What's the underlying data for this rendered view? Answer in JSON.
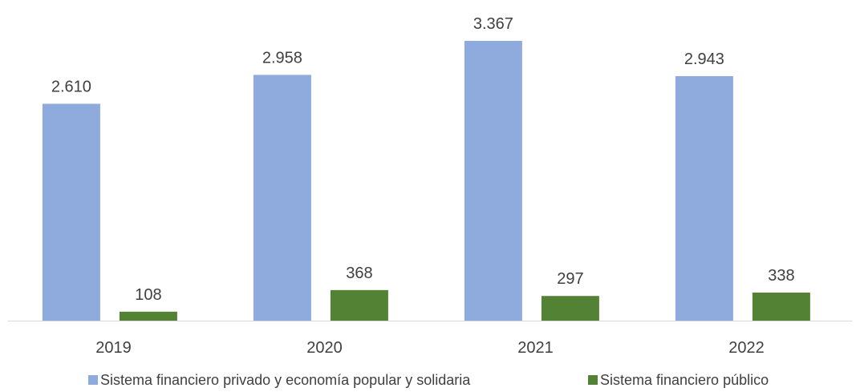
{
  "chart_data": {
    "type": "bar",
    "categories": [
      "2019",
      "2020",
      "2021",
      "2022"
    ],
    "series": [
      {
        "name": "Sistema financiero privado y economía popular y solidaria",
        "values": [
          2610,
          2958,
          3367,
          2943
        ],
        "labels": [
          "2.610",
          "2.958",
          "3.367",
          "2.943"
        ],
        "color": "#8faadc"
      },
      {
        "name": "Sistema financiero público",
        "values": [
          108,
          368,
          297,
          338
        ],
        "labels": [
          "108",
          "368",
          "297",
          "338"
        ],
        "color": "#548235"
      }
    ],
    "ylim": [
      0,
      3367
    ],
    "grid": false,
    "legend_position": "bottom",
    "baseline_color": "#d9d9d9"
  }
}
